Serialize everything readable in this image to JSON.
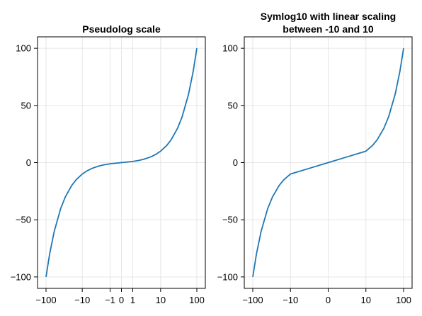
{
  "chart_data": [
    {
      "type": "line",
      "title_lines": [
        "Pseudolog scale"
      ],
      "xlabel": "",
      "ylabel": "",
      "x_scale": "pseudolog10",
      "xlim": [
        -100,
        100
      ],
      "ylim": [
        -110,
        110
      ],
      "x_ticks": [
        -100,
        -10,
        -1,
        0,
        1,
        10,
        100
      ],
      "x_tick_labels": [
        "−100",
        "−10",
        "−1",
        "0",
        "1",
        "10",
        "100"
      ],
      "y_ticks": [
        -100,
        -50,
        0,
        50,
        100
      ],
      "y_tick_labels": [
        "−100",
        "−50",
        "0",
        "50",
        "100"
      ],
      "grid": true,
      "series": [
        {
          "color": "#1f77b4",
          "x": [
            -100,
            -80,
            -60,
            -40,
            -30,
            -20,
            -15,
            -10,
            -7,
            -5,
            -3,
            -2,
            -1,
            0,
            1,
            2,
            3,
            5,
            7,
            10,
            15,
            20,
            30,
            40,
            60,
            80,
            100
          ],
          "y": [
            -100,
            -80,
            -60,
            -40,
            -30,
            -20,
            -15,
            -10,
            -7,
            -5,
            -3,
            -2,
            -1,
            0,
            1,
            2,
            3,
            5,
            7,
            10,
            15,
            20,
            30,
            40,
            60,
            80,
            100
          ]
        }
      ]
    },
    {
      "type": "line",
      "title_lines": [
        "Symlog10 with linear scaling",
        "between -10 and 10"
      ],
      "xlabel": "",
      "ylabel": "",
      "x_scale": "symlog10",
      "linear_threshold": 10,
      "xlim": [
        -100,
        100
      ],
      "ylim": [
        -110,
        110
      ],
      "x_ticks": [
        -100,
        -10,
        0,
        10,
        100
      ],
      "x_tick_labels": [
        "−100",
        "−10",
        "0",
        "10",
        "100"
      ],
      "y_ticks": [
        -100,
        -50,
        0,
        50,
        100
      ],
      "y_tick_labels": [
        "−100",
        "−50",
        "0",
        "50",
        "100"
      ],
      "grid": true,
      "series": [
        {
          "color": "#1f77b4",
          "x": [
            -100,
            -80,
            -60,
            -40,
            -30,
            -20,
            -15,
            -10,
            -5,
            0,
            5,
            10,
            15,
            20,
            30,
            40,
            60,
            80,
            100
          ],
          "y": [
            -100,
            -80,
            -60,
            -40,
            -30,
            -20,
            -15,
            -10,
            -5,
            0,
            5,
            10,
            15,
            20,
            30,
            40,
            60,
            80,
            100
          ]
        }
      ]
    }
  ]
}
